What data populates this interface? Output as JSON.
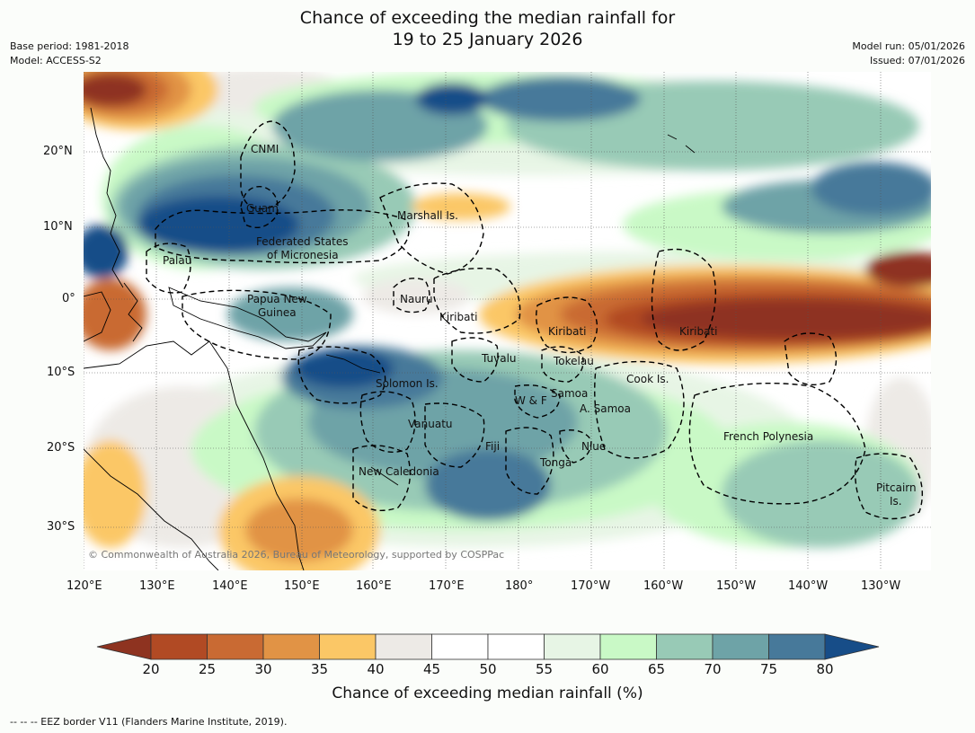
{
  "title": {
    "line1": "Chance of exceeding the median rainfall for",
    "line2": "19 to 25 January 2026"
  },
  "meta": {
    "base_period": "Base period: 1981-2018",
    "model": "Model: ACCESS-S2",
    "model_run": "Model run: 05/01/2026",
    "issued": "Issued: 07/01/2026"
  },
  "colors": {
    "c20": "#8e3320",
    "c25": "#b14a24",
    "c30": "#c96a33",
    "c35": "#e19345",
    "c40": "#fbc766",
    "c45": "#edeae6",
    "c50": "#ffffff",
    "c55": "#ffffff",
    "c60": "#e7f5e5",
    "c65": "#c9f9c6",
    "c70": "#98cab6",
    "c75": "#6ea3a7",
    "c80": "#47799a",
    "c85": "#174d88"
  },
  "axes": {
    "lon_labels": [
      "120°E",
      "130°E",
      "140°E",
      "150°E",
      "160°E",
      "170°E",
      "180°",
      "170°W",
      "160°W",
      "150°W",
      "140°W",
      "130°W"
    ],
    "lat_labels": [
      "20°N",
      "10°N",
      "0°",
      "10°S",
      "20°S",
      "30°S"
    ]
  },
  "places": [
    {
      "name": "CNMI"
    },
    {
      "name": "Guam"
    },
    {
      "name": "Marshall Is."
    },
    {
      "name": "Federated States"
    },
    {
      "name": "of Micronesia"
    },
    {
      "name": "Palau"
    },
    {
      "name": "Papua New"
    },
    {
      "name": "Guinea"
    },
    {
      "name": "Nauru"
    },
    {
      "name": "Kiribati"
    },
    {
      "name": "Kiribati"
    },
    {
      "name": "Kiribati"
    },
    {
      "name": "Tuvalu"
    },
    {
      "name": "Tokelau"
    },
    {
      "name": "Cook Is."
    },
    {
      "name": "Solomon Is."
    },
    {
      "name": "W & F"
    },
    {
      "name": "Samoa"
    },
    {
      "name": "A. Samoa"
    },
    {
      "name": "Vanuatu"
    },
    {
      "name": "Fiji"
    },
    {
      "name": "Niue"
    },
    {
      "name": "French Polynesia"
    },
    {
      "name": "Tonga"
    },
    {
      "name": "New Caledonia"
    },
    {
      "name": "Pitcairn"
    },
    {
      "name": "Is."
    }
  ],
  "copyright": "© Commonwealth of Australia 2026, Bureau of Meteorology, supported by COSPPac",
  "colorbar": {
    "labels": [
      "20",
      "25",
      "30",
      "35",
      "40",
      "45",
      "50",
      "55",
      "60",
      "65",
      "70",
      "75",
      "80"
    ],
    "title": "Chance of exceeding median rainfall (%)"
  },
  "footnote": "--  --  -- EEZ border V11 (Flanders Marine Institute, 2019)."
}
